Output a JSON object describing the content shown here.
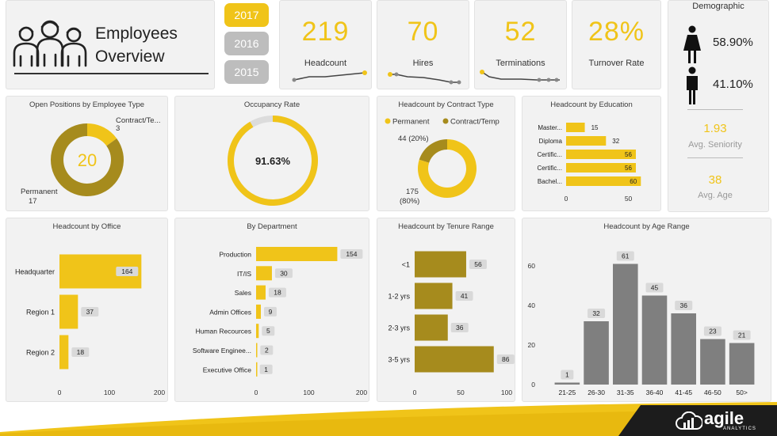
{
  "header": {
    "title_line1": "Employees",
    "title_line2": "Overview"
  },
  "years": [
    "2017",
    "2016",
    "2015"
  ],
  "selected_year": "2017",
  "kpis": {
    "headcount": {
      "value": "219",
      "label": "Headcount"
    },
    "hires": {
      "value": "70",
      "label": "Hires"
    },
    "terminations": {
      "value": "52",
      "label": "Terminations"
    },
    "turnover": {
      "value": "28%",
      "label": "Turnover Rate"
    }
  },
  "demographic": {
    "title": "Demographic",
    "female_pct": "58.90%",
    "male_pct": "41.10%",
    "seniority_value": "1.93",
    "seniority_label": "Avg. Seniority",
    "age_value": "38",
    "age_label": "Avg. Age"
  },
  "colors": {
    "accent": "#f0c419",
    "olive": "#a68b1d",
    "gray": "#7f7f7f",
    "card": "#f2f2f2",
    "dark": "#1c1c1c"
  },
  "brand": {
    "name": "agile",
    "sub": "ANALYTICS"
  },
  "chart_data": [
    {
      "id": "open_positions",
      "type": "pie",
      "title": "Open Positions by Employee Type",
      "center_label": "20",
      "slices": [
        {
          "name": "Contract/Te...",
          "value": 3,
          "color": "#f0c419"
        },
        {
          "name": "Permanent",
          "value": 17,
          "color": "#a68b1d"
        }
      ]
    },
    {
      "id": "occupancy",
      "type": "pie",
      "title": "Occupancy Rate",
      "value_label": "91.63%",
      "value": 91.63
    },
    {
      "id": "contract_type",
      "type": "pie",
      "title": "Headcount by Contract Type",
      "legend": [
        "Permanent",
        "Contract/Temp"
      ],
      "slices": [
        {
          "name": "Permanent",
          "value": 175,
          "label1": "175",
          "label2": "(80%)",
          "color": "#f0c419"
        },
        {
          "name": "Contract/Temp",
          "value": 44,
          "label1": "44 (20%)",
          "color": "#a68b1d"
        }
      ]
    },
    {
      "id": "education",
      "type": "bar",
      "title": "Headcount by Education",
      "categories": [
        "Master...",
        "Diploma",
        "Certific...",
        "Certific...",
        "Bachel..."
      ],
      "values": [
        15,
        32,
        56,
        56,
        60
      ],
      "xlim": [
        0,
        70
      ],
      "xticks": [
        "0",
        "50"
      ]
    },
    {
      "id": "office",
      "type": "bar",
      "title": "Headcount by Office",
      "categories": [
        "Headquarter",
        "Region 1",
        "Region 2"
      ],
      "values": [
        164,
        37,
        18
      ],
      "xlim": [
        0,
        200
      ],
      "xticks": [
        "0",
        "100",
        "200"
      ]
    },
    {
      "id": "department",
      "type": "bar",
      "title": "By Department",
      "categories": [
        "Production",
        "IT/IS",
        "Sales",
        "Admin Offices",
        "Human Recources",
        "Software Enginee...",
        "Executive Office"
      ],
      "values": [
        154,
        30,
        18,
        9,
        5,
        2,
        1
      ],
      "xlim": [
        0,
        200
      ],
      "xticks": [
        "0",
        "100",
        "200"
      ]
    },
    {
      "id": "tenure",
      "type": "bar",
      "title": "Headcount by Tenure Range",
      "categories": [
        "<1",
        "1-2 yrs",
        "2-3 yrs",
        "3-5 yrs"
      ],
      "values": [
        56,
        41,
        36,
        86
      ],
      "xlim": [
        0,
        100
      ],
      "xticks": [
        "0",
        "50",
        "100"
      ]
    },
    {
      "id": "age",
      "type": "bar",
      "title": "Headcount by Age Range",
      "categories": [
        "21-25",
        "26-30",
        "31-35",
        "36-40",
        "41-45",
        "46-50",
        "50>"
      ],
      "values": [
        1,
        32,
        61,
        45,
        36,
        23,
        21
      ],
      "ylim": [
        0,
        70
      ],
      "yticks": [
        "0",
        "20",
        "40",
        "60"
      ]
    }
  ]
}
